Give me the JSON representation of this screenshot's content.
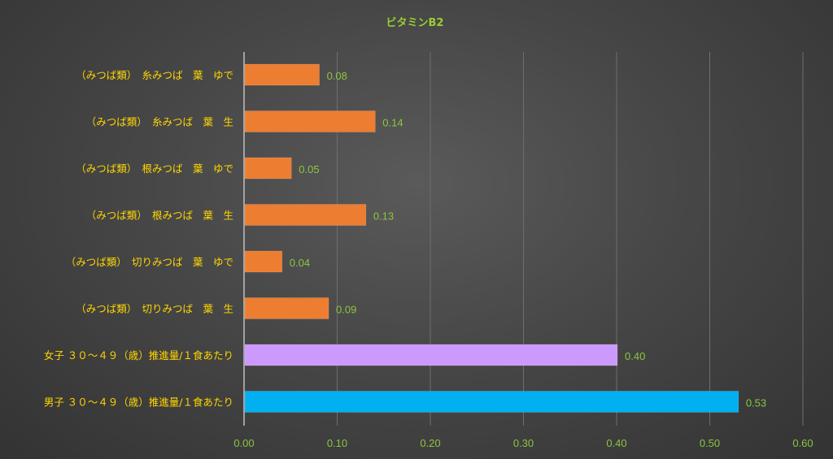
{
  "chart_data": {
    "type": "bar",
    "orientation": "horizontal",
    "title": "ビタミンB2",
    "xlabel": "",
    "ylabel": "",
    "xlim": [
      0,
      0.6
    ],
    "x_ticks": [
      "0.00",
      "0.10",
      "0.20",
      "0.30",
      "0.40",
      "0.50",
      "0.60"
    ],
    "grid": true,
    "categories": [
      "（みつば類）　糸みつば　葉　ゆで",
      "（みつば類）　糸みつば　葉　生",
      "（みつば類）　根みつば　葉　ゆで",
      "（みつば類）　根みつば　葉　生",
      "（みつば類）　切りみつば　葉　ゆで",
      "（みつば類）　切りみつば　葉　生",
      "女子 ３０～４９（歳）推進量/１食あたり",
      "男子 ３０～４９（歳）推進量/１食あたり"
    ],
    "values": [
      0.08,
      0.14,
      0.05,
      0.13,
      0.04,
      0.09,
      0.4,
      0.53
    ],
    "value_labels": [
      "0.08",
      "0.14",
      "0.05",
      "0.13",
      "0.04",
      "0.09",
      "0.40",
      "0.53"
    ],
    "bar_colors": [
      "#ED7D31",
      "#ED7D31",
      "#ED7D31",
      "#ED7D31",
      "#ED7D31",
      "#ED7D31",
      "#CC99FF",
      "#00B0F0"
    ]
  },
  "colors": {
    "title": "#9ACD32",
    "category_labels": "#FFD700",
    "tick_labels": "#8DC63F",
    "data_labels": "#8DC63F",
    "gridlines": "#6E6E6E",
    "axis": "#BFBFBF"
  }
}
